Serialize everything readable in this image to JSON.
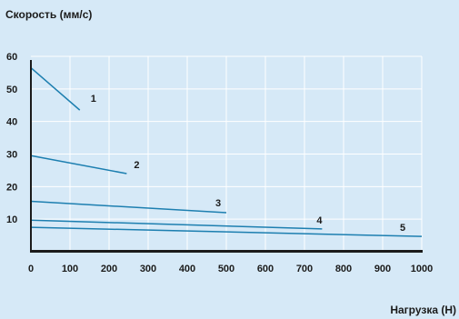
{
  "chart_data": {
    "type": "line",
    "ylabel": "Скорость (мм/с)",
    "xlabel": "Нагрузка (Н)",
    "xlim": [
      0,
      1000
    ],
    "ylim": [
      0,
      60
    ],
    "x_ticks": [
      "0",
      "100",
      "200",
      "300",
      "400",
      "500",
      "600",
      "700",
      "800",
      "900",
      "1000"
    ],
    "y_ticks": [
      "10",
      "20",
      "30",
      "40",
      "50",
      "60"
    ],
    "grid": true,
    "colors": {
      "background": "#d6e9f7",
      "grid": "#ffffff",
      "axis": "#1b1b1b",
      "series": "#1d7fb0"
    },
    "series": [
      {
        "name": "1",
        "x": [
          0,
          125
        ],
        "y": [
          56.5,
          43.5
        ]
      },
      {
        "name": "2",
        "x": [
          0,
          245
        ],
        "y": [
          29.5,
          24.0
        ]
      },
      {
        "name": "3",
        "x": [
          0,
          500
        ],
        "y": [
          15.5,
          12.0
        ]
      },
      {
        "name": "4",
        "x": [
          0,
          745
        ],
        "y": [
          9.7,
          7.0
        ]
      },
      {
        "name": "5",
        "x": [
          0,
          1000
        ],
        "y": [
          7.5,
          4.7
        ]
      }
    ]
  }
}
